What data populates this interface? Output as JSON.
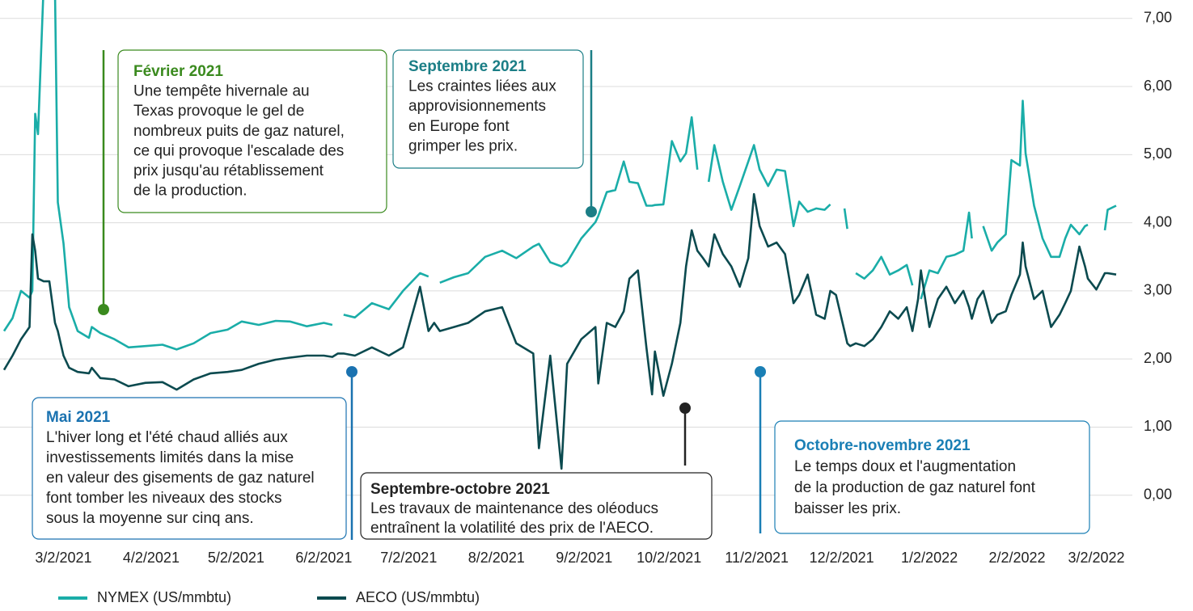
{
  "chart_data": {
    "type": "line",
    "x": [
      "2021-02-09",
      "2021-02-12",
      "2021-02-15",
      "2021-02-18",
      "2021-02-19",
      "2021-02-20",
      "2021-02-21",
      "2021-02-23",
      "2021-02-25",
      "2021-02-27",
      "2021-02-28",
      "2021-03-02",
      "2021-03-04",
      "2021-03-07",
      "2021-03-11",
      "2021-03-12",
      "2021-03-15",
      "2021-03-20",
      "2021-03-25",
      "2021-03-31",
      "2021-04-06",
      "2021-04-11",
      "2021-04-17",
      "2021-04-23",
      "2021-04-29",
      "2021-05-04",
      "2021-05-10",
      "2021-05-16",
      "2021-05-21",
      "2021-05-27",
      "2021-06-02",
      "2021-06-05",
      "2021-06-07",
      "2021-06-09",
      "2021-06-13",
      "2021-06-19",
      "2021-06-25",
      "2021-06-30",
      "2021-07-06",
      "2021-07-09",
      "2021-07-11",
      "2021-07-13",
      "2021-07-18",
      "2021-07-23",
      "2021-07-29",
      "2021-08-04",
      "2021-08-09",
      "2021-08-15",
      "2021-08-17",
      "2021-08-21",
      "2021-08-25",
      "2021-08-27",
      "2021-09-01",
      "2021-09-06",
      "2021-09-07",
      "2021-09-10",
      "2021-09-13",
      "2021-09-16",
      "2021-09-18",
      "2021-09-21",
      "2021-09-24",
      "2021-09-26",
      "2021-09-27",
      "2021-09-30",
      "2021-10-03",
      "2021-10-06",
      "2021-10-08",
      "2021-10-10",
      "2021-10-12",
      "2021-10-14",
      "2021-10-16",
      "2021-10-18",
      "2021-10-21",
      "2021-10-24",
      "2021-10-27",
      "2021-10-30",
      "2021-11-01",
      "2021-11-03",
      "2021-11-06",
      "2021-11-09",
      "2021-11-12",
      "2021-11-15",
      "2021-11-17",
      "2021-11-20",
      "2021-11-23",
      "2021-11-26",
      "2021-11-28",
      "2021-11-30",
      "2021-12-03",
      "2021-12-04",
      "2021-12-05",
      "2021-12-07",
      "2021-12-10",
      "2021-12-13",
      "2021-12-16",
      "2021-12-19",
      "2021-12-22",
      "2021-12-25",
      "2021-12-27",
      "2021-12-29",
      "2021-12-30",
      "2022-01-02",
      "2022-01-05",
      "2022-01-08",
      "2022-01-11",
      "2022-01-14",
      "2022-01-16",
      "2022-01-17",
      "2022-01-19",
      "2022-01-21",
      "2022-01-24",
      "2022-01-26",
      "2022-01-29",
      "2022-01-31",
      "2022-02-03",
      "2022-02-04",
      "2022-02-05",
      "2022-02-08",
      "2022-02-11",
      "2022-02-14",
      "2022-02-17",
      "2022-02-19",
      "2022-02-21",
      "2022-02-24",
      "2022-02-26",
      "2022-02-27",
      "2022-03-02",
      "2022-03-05",
      "2022-03-06",
      "2022-03-09"
    ],
    "series": [
      {
        "name": "NYMEX (US/mmbtu)",
        "color": "#1aada8",
        "values": [
          2.41,
          2.6,
          3.0,
          2.9,
          3.0,
          5.6,
          5.3,
          7.5,
          7.9,
          7.4,
          4.3,
          3.7,
          2.76,
          2.41,
          2.31,
          2.47,
          2.38,
          2.29,
          2.17,
          2.19,
          2.21,
          2.14,
          2.23,
          2.38,
          2.43,
          2.55,
          2.5,
          2.56,
          2.55,
          2.48,
          2.53,
          2.5,
          null,
          2.65,
          2.61,
          2.82,
          2.73,
          3.0,
          3.26,
          3.21,
          null,
          3.12,
          3.2,
          3.26,
          3.5,
          3.59,
          3.48,
          3.65,
          3.69,
          3.42,
          3.36,
          3.42,
          3.77,
          4.01,
          4.1,
          4.45,
          4.48,
          4.9,
          4.6,
          4.58,
          4.25,
          4.25,
          4.26,
          4.27,
          5.2,
          4.9,
          5.02,
          5.55,
          4.78,
          null,
          4.6,
          5.14,
          4.6,
          4.19,
          4.54,
          4.9,
          5.14,
          4.78,
          4.54,
          4.78,
          4.76,
          3.95,
          4.31,
          4.16,
          4.21,
          4.19,
          4.27,
          null,
          4.21,
          3.91,
          null,
          3.26,
          3.18,
          3.3,
          3.5,
          3.24,
          3.3,
          3.38,
          3.08,
          null,
          2.88,
          3.3,
          3.26,
          3.5,
          3.53,
          3.59,
          4.15,
          3.77,
          null,
          3.95,
          3.59,
          3.71,
          3.83,
          4.92,
          4.84,
          5.79,
          5.02,
          4.25,
          3.77,
          3.5,
          3.5,
          3.77,
          3.97,
          3.83,
          3.95,
          3.97,
          null,
          3.89,
          4.19,
          4.25
        ]
      },
      {
        "name": "AECO (US/mmbtu)",
        "color": "#0b4a4f",
        "values": [
          1.84,
          2.05,
          2.29,
          2.47,
          3.83,
          3.59,
          3.18,
          3.14,
          3.14,
          2.53,
          2.41,
          2.05,
          1.87,
          1.81,
          1.79,
          1.87,
          1.72,
          1.7,
          1.6,
          1.65,
          1.66,
          1.55,
          1.7,
          1.79,
          1.81,
          1.84,
          1.93,
          1.99,
          2.02,
          2.05,
          2.05,
          2.03,
          2.08,
          2.08,
          2.05,
          2.17,
          2.05,
          2.17,
          3.06,
          2.41,
          2.53,
          2.41,
          2.47,
          2.53,
          2.7,
          2.76,
          2.23,
          2.08,
          0.69,
          2.05,
          0.39,
          1.93,
          2.29,
          2.47,
          1.64,
          2.53,
          2.47,
          2.7,
          3.18,
          3.3,
          2.17,
          1.48,
          2.11,
          1.46,
          1.93,
          2.53,
          3.36,
          3.89,
          3.59,
          3.48,
          3.36,
          3.83,
          3.54,
          3.36,
          3.06,
          3.48,
          4.42,
          3.95,
          3.65,
          3.71,
          3.54,
          2.82,
          2.94,
          3.24,
          2.65,
          2.59,
          3.0,
          2.94,
          2.41,
          2.23,
          2.19,
          2.23,
          2.19,
          2.29,
          2.47,
          2.7,
          2.59,
          2.76,
          2.41,
          2.88,
          3.3,
          2.47,
          2.88,
          3.06,
          2.82,
          3.0,
          2.76,
          2.59,
          2.88,
          3.0,
          2.53,
          2.65,
          2.7,
          2.94,
          3.24,
          3.71,
          3.36,
          2.88,
          3.0,
          2.47,
          2.65,
          2.82,
          3.0,
          3.65,
          3.36,
          3.18,
          3.02,
          3.26,
          3.26,
          3.24
        ]
      }
    ],
    "xlim": [
      "2021-02-09",
      "2022-03-09"
    ],
    "xticks": [
      {
        "value": "2021-03-02",
        "label": "3/2/2021"
      },
      {
        "value": "2021-04-02",
        "label": "4/2/2021"
      },
      {
        "value": "2021-05-02",
        "label": "5/2/2021"
      },
      {
        "value": "2021-06-02",
        "label": "6/2/2021"
      },
      {
        "value": "2021-07-02",
        "label": "7/2/2021"
      },
      {
        "value": "2021-08-02",
        "label": "8/2/2021"
      },
      {
        "value": "2021-09-02",
        "label": "9/2/2021"
      },
      {
        "value": "2021-10-02",
        "label": "10/2/2021"
      },
      {
        "value": "2021-11-02",
        "label": "11/2/2021"
      },
      {
        "value": "2021-12-02",
        "label": "12/2/2021"
      },
      {
        "value": "2022-01-02",
        "label": "1/2/2022"
      },
      {
        "value": "2022-02-02",
        "label": "2/2/2022"
      },
      {
        "value": "2022-03-02",
        "label": "3/2/2022"
      }
    ],
    "ylim": [
      -0.62,
      7.27
    ],
    "yticks": [
      {
        "value": 0,
        "label": "0,00"
      },
      {
        "value": 1,
        "label": "1,00"
      },
      {
        "value": 2,
        "label": "2,00"
      },
      {
        "value": 3,
        "label": "3,00"
      },
      {
        "value": 4,
        "label": "4,00"
      },
      {
        "value": 5,
        "label": "5,00"
      },
      {
        "value": 6,
        "label": "6,00"
      },
      {
        "value": 7,
        "label": "7,00"
      }
    ],
    "grid": true,
    "legend": "bottom-left",
    "annotations": [
      {
        "title": "Février 2021",
        "color": "#3a8a1e",
        "text": [
          "Une tempête hivernale au",
          "Texas provoque le gel de",
          "nombreux puits de gaz naturel,",
          "ce qui provoque l'escalade des",
          "prix jusqu'au rétablissement",
          "de la production."
        ]
      },
      {
        "title": "Septembre 2021",
        "color": "#1b7e86",
        "text": [
          "Les craintes liées aux",
          "approvisionnements",
          "en Europe font",
          "grimper les prix."
        ]
      },
      {
        "title": "Mai 2021",
        "color": "#1a72b0",
        "text": [
          "L'hiver long et l'été chaud alliés aux",
          "investissements limités dans la mise",
          "en valeur des gisements de gaz naturel",
          "font tomber les niveaux des stocks",
          "sous la moyenne sur cinq ans."
        ]
      },
      {
        "title": "Septembre-octobre 2021",
        "color": "#222222",
        "text": [
          "Les travaux de maintenance des oléoducs",
          "entraînent la volatilité des prix de l'AECO."
        ]
      },
      {
        "title": "Octobre-novembre 2021",
        "color": "#1a7fb5",
        "text": [
          "Le temps doux et l'augmentation",
          "de la production de gaz naturel font",
          "baisser les prix."
        ]
      }
    ]
  }
}
